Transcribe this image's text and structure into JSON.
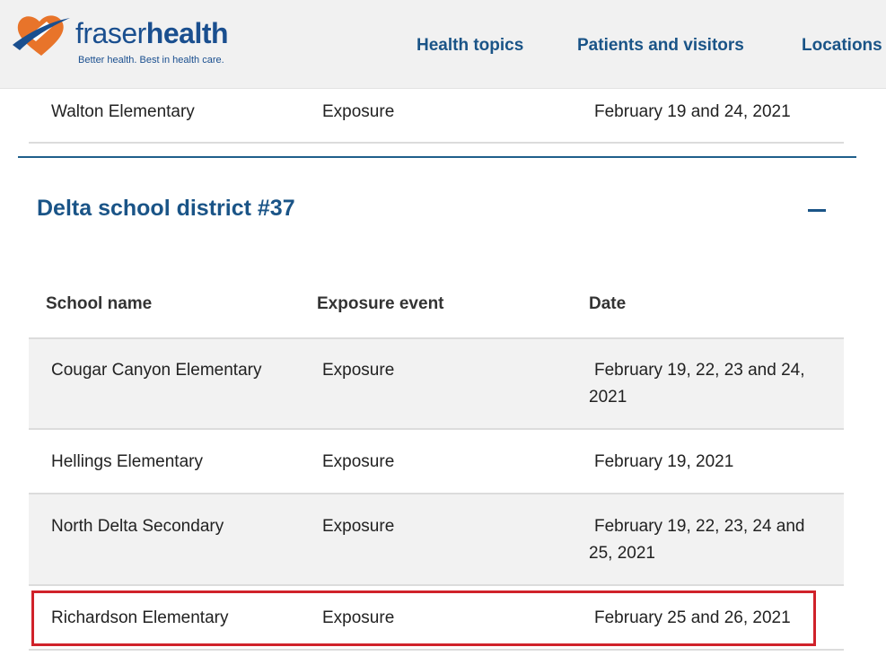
{
  "header": {
    "logo": {
      "word_light": "fraser",
      "word_bold": "health",
      "tagline": "Better health. Best in health care."
    },
    "nav": [
      {
        "label": "Health topics"
      },
      {
        "label": "Patients and visitors"
      },
      {
        "label": "Locations"
      }
    ]
  },
  "prev_section_row": {
    "school": "Walton Elementary",
    "event": "Exposure",
    "date": "February 19 and 24, 2021"
  },
  "section": {
    "title": "Delta school district #37",
    "columns": [
      "School name",
      "Exposure event",
      "Date"
    ],
    "rows": [
      {
        "school": "Cougar Canyon Elementary",
        "event": "Exposure",
        "date": "February 19, 22, 23 and 24, 2021"
      },
      {
        "school": "Hellings Elementary",
        "event": "Exposure",
        "date": "February 19, 2021"
      },
      {
        "school": "North Delta Secondary",
        "event": "Exposure",
        "date": "February 19, 22, 23, 24 and 25, 2021"
      },
      {
        "school": "Richardson Elementary",
        "event": "Exposure",
        "date": "February 25 and 26, 2021"
      }
    ]
  },
  "colors": {
    "brand_blue": "#1a5487",
    "logo_orange": "#e8742a",
    "highlight_red": "#d0222a",
    "header_bg": "#f1f1f1"
  },
  "icons": {
    "collapse": "minus-icon",
    "logo": "heart-logo-icon"
  }
}
